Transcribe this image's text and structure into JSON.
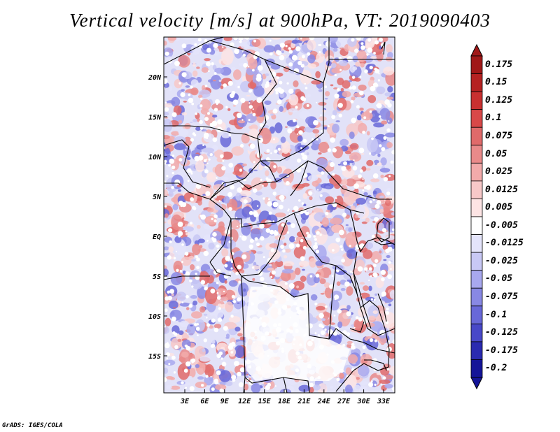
{
  "title": "Vertical velocity [m/s] at 900hPa, VT: 2019090403",
  "lat_ticks": [
    "20N",
    "15N",
    "10N",
    "5N",
    "EQ",
    "5S",
    "10S",
    "15S"
  ],
  "lon_ticks": [
    "3E",
    "6E",
    "9E",
    "12E",
    "15E",
    "18E",
    "21E",
    "24E",
    "27E",
    "30E",
    "33E"
  ],
  "colorbar": {
    "labels": [
      "0.175",
      "0.15",
      "0.125",
      "0.1",
      "0.075",
      "0.05",
      "0.025",
      "0.0125",
      "0.005",
      "-0.005",
      "-0.0125",
      "-0.025",
      "-0.05",
      "-0.075",
      "-0.1",
      "-0.125",
      "-0.175",
      "-0.2"
    ],
    "colors": [
      "#a01818",
      "#b52222",
      "#c83030",
      "#d84848",
      "#e06a6a",
      "#e98a8a",
      "#f2aaaa",
      "#f7c8c8",
      "#fde4e4",
      "#ffffff",
      "#e4e4fb",
      "#c8c8f5",
      "#a8a8ee",
      "#8888e4",
      "#6868d8",
      "#4848c8",
      "#2a2ab0",
      "#141498"
    ]
  },
  "credit": "GrADS: IGES/COLA"
}
